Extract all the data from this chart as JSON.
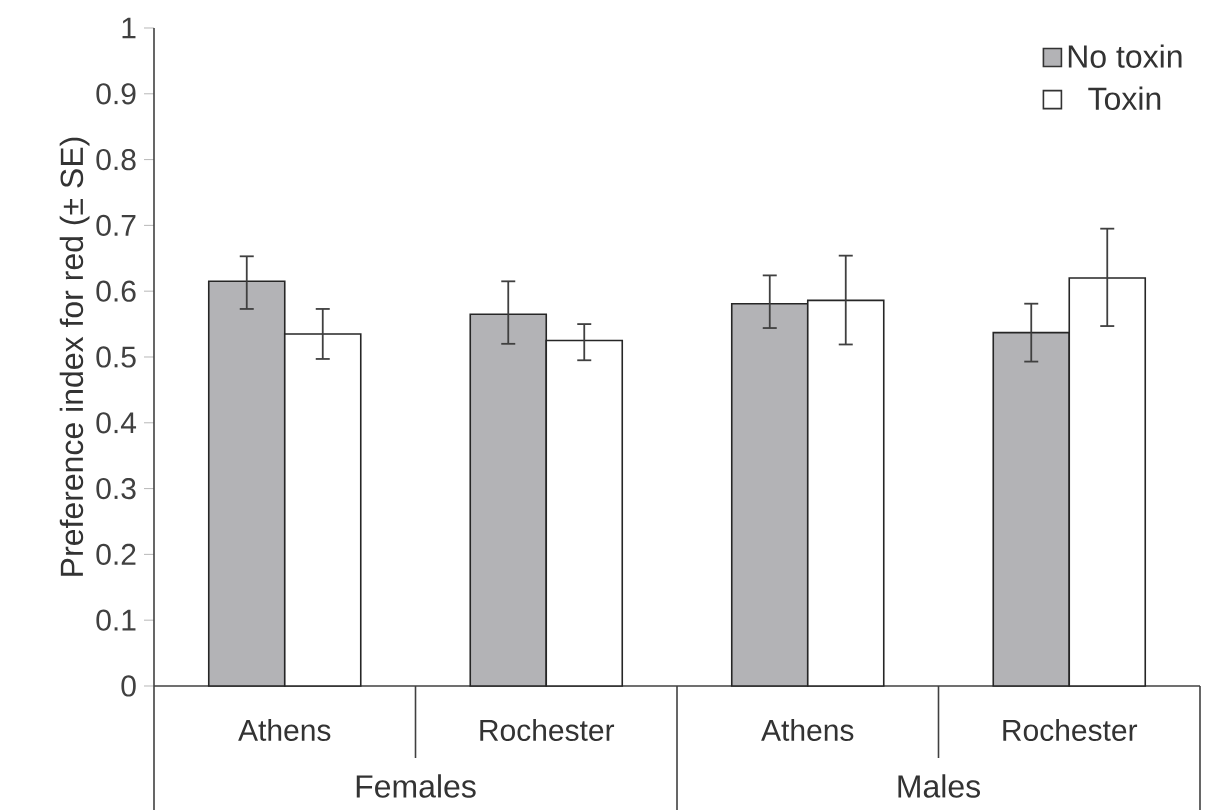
{
  "chart_data": {
    "type": "bar",
    "ylabel": "Preference index for red (± SE)",
    "categories": [
      "Athens",
      "Rochester",
      "Athens",
      "Rochester"
    ],
    "series": [
      {
        "name": "No toxin",
        "color": "#b3b3b6",
        "values": [
          0.615,
          0.565,
          0.581,
          0.537
        ],
        "errors": [
          [
            0.573,
            0.653
          ],
          [
            0.52,
            0.615
          ],
          [
            0.544,
            0.624
          ],
          [
            0.493,
            0.581
          ]
        ]
      },
      {
        "name": "Toxin",
        "color": "#ffffff",
        "values": [
          0.535,
          0.525,
          0.586,
          0.62
        ],
        "errors": [
          [
            0.497,
            0.573
          ],
          [
            0.495,
            0.55
          ],
          [
            0.519,
            0.654
          ],
          [
            0.547,
            0.695
          ]
        ]
      }
    ],
    "annotations": [
      "Females",
      "Males"
    ],
    "ylim": [
      0,
      1
    ],
    "yticks": [
      0,
      0.1,
      0.2,
      0.3,
      0.4,
      0.5,
      0.6,
      0.7,
      0.8,
      0.9,
      1
    ],
    "grid": false,
    "legend": "top right"
  }
}
